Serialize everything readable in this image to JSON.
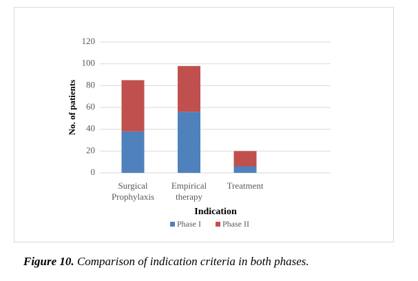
{
  "chart_data": {
    "type": "stacked-bar",
    "categories": [
      "Surgical Prophylaxis",
      "Empirical therapy",
      "Treatment"
    ],
    "series": [
      {
        "name": "Phase I",
        "color": "#4f81bd",
        "values": [
          38,
          56,
          6
        ]
      },
      {
        "name": "Phase II",
        "color": "#c0504d",
        "values": [
          47,
          42,
          14
        ]
      }
    ],
    "y_label": "No. of patients",
    "x_label": "Indication",
    "ylim": [
      0,
      120
    ],
    "yticks": [
      0,
      20,
      40,
      60,
      80,
      100,
      120
    ],
    "grid": true
  },
  "caption": {
    "label": "Figure 10.",
    "text": "Comparison of indication criteria in both phases."
  }
}
